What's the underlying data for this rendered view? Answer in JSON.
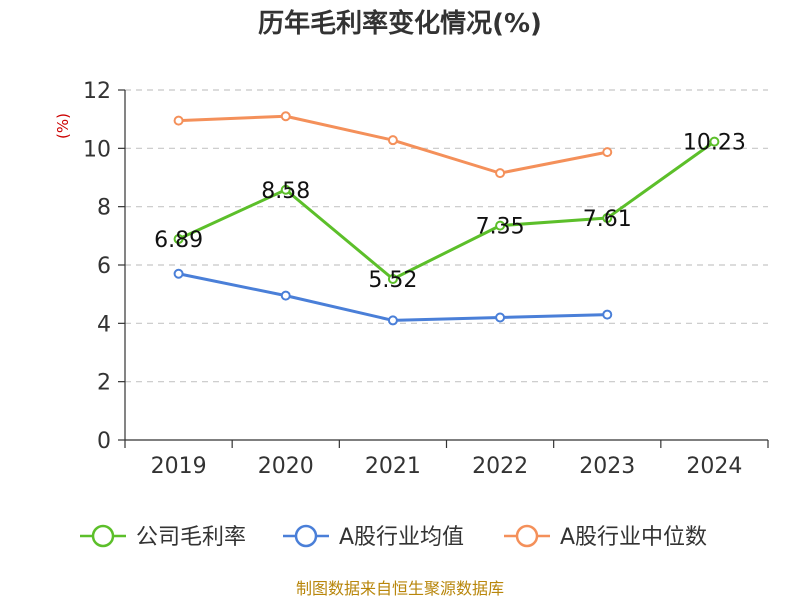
{
  "chart_data": {
    "type": "line",
    "title": "历年毛利率变化情况(%)",
    "ylabel": "(%)",
    "x": [
      "2019",
      "2020",
      "2021",
      "2022",
      "2023",
      "2024"
    ],
    "ylim": [
      0,
      12
    ],
    "yticks": [
      "0",
      "2",
      "4",
      "6",
      "8",
      "10",
      "12"
    ],
    "grid": true,
    "legend_position": "bottom",
    "series": [
      {
        "name": "公司毛利率",
        "color": "#5cbf2a",
        "values": [
          6.89,
          8.58,
          5.52,
          7.35,
          7.61,
          10.23
        ],
        "labels": [
          "6.89",
          "8.58",
          "5.52",
          "7.35",
          "7.61",
          "10.23"
        ]
      },
      {
        "name": "A股行业均值",
        "color": "#4a7fd8",
        "values": [
          5.7,
          4.95,
          4.1,
          4.2,
          4.3,
          null
        ]
      },
      {
        "name": "A股行业中位数",
        "color": "#f4905a",
        "values": [
          10.95,
          11.1,
          10.28,
          9.15,
          9.87,
          null
        ]
      }
    ]
  },
  "source": "制图数据来自恒生聚源数据库"
}
